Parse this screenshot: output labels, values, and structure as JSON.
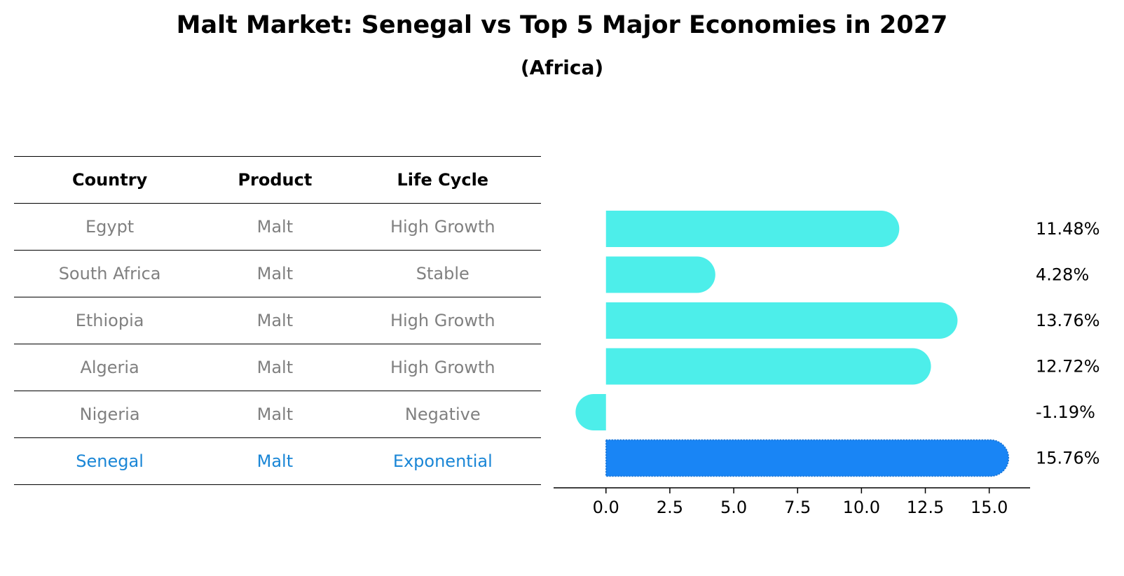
{
  "title": "Malt Market: Senegal vs Top 5 Major Economies in 2027",
  "subtitle": "(Africa)",
  "table": {
    "headers": [
      "Country",
      "Product",
      "Life Cycle"
    ],
    "rows": [
      [
        "Egypt",
        "Malt",
        "High Growth"
      ],
      [
        "South Africa",
        "Malt",
        "Stable"
      ],
      [
        "Ethiopia",
        "Malt",
        "High Growth"
      ],
      [
        "Algeria",
        "Malt",
        "High Growth"
      ],
      [
        "Nigeria",
        "Malt",
        "Negative"
      ],
      [
        "Senegal",
        "Malt",
        "Exponential"
      ]
    ]
  },
  "colors": {
    "bar": "#4deeea",
    "highlight": "#1985f5",
    "highlight_text": "#1a86d6",
    "muted_text": "#808080"
  },
  "chart_data": {
    "type": "bar",
    "orientation": "horizontal",
    "categories": [
      "Egypt",
      "South Africa",
      "Ethiopia",
      "Algeria",
      "Nigeria",
      "Senegal"
    ],
    "values": [
      11.48,
      4.28,
      13.76,
      12.72,
      -1.19,
      15.76
    ],
    "labels": [
      "11.48%",
      "4.28%",
      "13.76%",
      "12.72%",
      "-1.19%",
      "15.76%"
    ],
    "highlight": "Senegal",
    "xticks": [
      0.0,
      2.5,
      5.0,
      7.5,
      10.0,
      12.5,
      15.0
    ],
    "xtick_labels": [
      "0.0",
      "2.5",
      "5.0",
      "7.5",
      "10.0",
      "12.5",
      "15.0"
    ],
    "xlim": [
      -2.05,
      16.6
    ]
  }
}
